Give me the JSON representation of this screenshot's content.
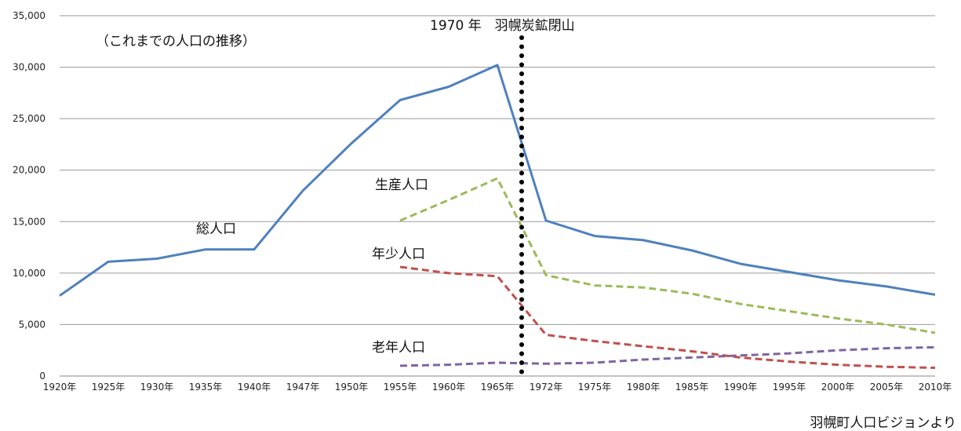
{
  "chart_data": {
    "type": "line",
    "title": "（これまでの人口の推移）",
    "source_note": "羽幌町人口ビジョンより",
    "annotation": {
      "text": "1970 年　羽幌炭鉱閉山",
      "x_between": [
        "1965年",
        "1972年"
      ]
    },
    "categories": [
      "1920年",
      "1925年",
      "1930年",
      "1935年",
      "1940年",
      "1947年",
      "1950年",
      "1955年",
      "1960年",
      "1965年",
      "1972年",
      "1975年",
      "1980年",
      "1985年",
      "1990年",
      "1995年",
      "2000年",
      "2005年",
      "2010年"
    ],
    "ylim": [
      0,
      35000
    ],
    "yticks": [
      "0",
      "5,000",
      "10,000",
      "15,000",
      "20,000",
      "25,000",
      "30,000",
      "35,000"
    ],
    "grid": true,
    "legend": "none (inline labels)",
    "series": [
      {
        "name": "総人口",
        "color": "#4f81bd",
        "dash": "solid",
        "values": [
          7800,
          11100,
          11400,
          12300,
          12300,
          18000,
          22600,
          26800,
          28100,
          30200,
          15100,
          13600,
          13200,
          12200,
          10900,
          10100,
          9300,
          8700,
          7900
        ]
      },
      {
        "name": "生産人口",
        "color": "#9bbb59",
        "dash": "dashed",
        "values": [
          null,
          null,
          null,
          null,
          null,
          null,
          null,
          15100,
          17100,
          19200,
          9800,
          8800,
          8600,
          8000,
          7000,
          6300,
          5600,
          5000,
          4200
        ]
      },
      {
        "name": "年少人口",
        "color": "#c0504d",
        "dash": "dashed",
        "values": [
          null,
          null,
          null,
          null,
          null,
          null,
          null,
          10600,
          10000,
          9700,
          4000,
          3400,
          2900,
          2400,
          1800,
          1400,
          1100,
          900,
          800
        ]
      },
      {
        "name": "老年人口",
        "color": "#8064a2",
        "dash": "dashed",
        "values": [
          null,
          null,
          null,
          null,
          null,
          null,
          null,
          1000,
          1100,
          1300,
          1200,
          1300,
          1600,
          1800,
          2000,
          2200,
          2500,
          2700,
          2800
        ]
      }
    ],
    "series_label_order": [
      "総人口",
      "生産人口",
      "年少人口",
      "老年人口"
    ]
  }
}
